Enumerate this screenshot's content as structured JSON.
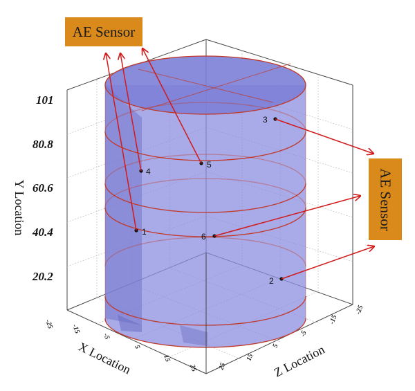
{
  "callouts": {
    "top": "AE Sensor",
    "right": "AE Sensor"
  },
  "axes": {
    "x_label": "X Location",
    "y_label": "Y Location",
    "z_label": "Z Location",
    "y_ticks": [
      "101",
      "80.8",
      "60.6",
      "40.4",
      "20.2"
    ],
    "x_ticks": [
      "-25",
      "-15",
      "-5",
      "5",
      "15",
      "25"
    ],
    "z_ticks": [
      "25",
      "15",
      "5",
      "-5",
      "-15",
      "-25"
    ]
  },
  "sensors": [
    {
      "id": "1"
    },
    {
      "id": "2"
    },
    {
      "id": "3"
    },
    {
      "id": "4"
    },
    {
      "id": "5"
    },
    {
      "id": "6"
    }
  ],
  "colors": {
    "cylinder_fill": "#8c8ee0",
    "cylinder_edge": "#c0392b",
    "arrow": "#d11a1a",
    "callout_bg": "#d98a1b"
  }
}
